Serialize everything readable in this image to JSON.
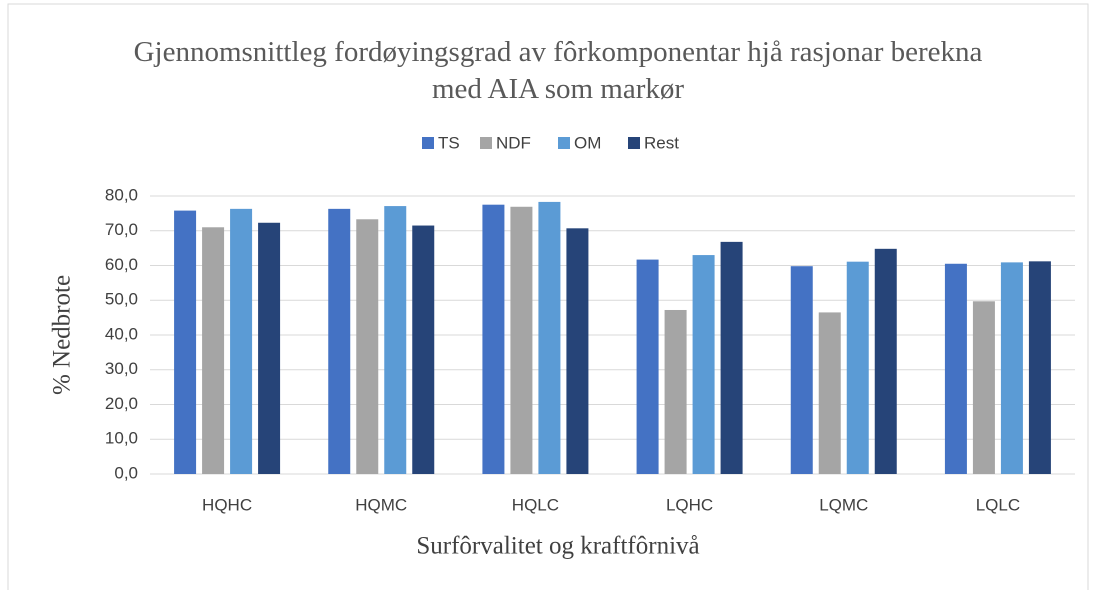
{
  "chart_data": {
    "type": "bar",
    "title": "Gjennomsnittleg fordøyingsgrad av fôrkomponentar hjå rasjonar berekna med AIA som markør",
    "xlabel": "Surfôrvalitet og kraftfôrnivå",
    "ylabel": "% Nedbrote",
    "categories": [
      "HQHC",
      "HQMC",
      "HQLC",
      "LQHC",
      "LQMC",
      "LQLC"
    ],
    "series": [
      {
        "name": "TS",
        "color": "#4472c4",
        "values": [
          75.8,
          76.3,
          77.5,
          61.7,
          59.8,
          60.5
        ]
      },
      {
        "name": "NDF",
        "color": "#a5a5a5",
        "values": [
          71.0,
          73.3,
          76.9,
          47.2,
          46.5,
          49.7
        ]
      },
      {
        "name": "OM",
        "color": "#5b9bd5",
        "values": [
          76.3,
          77.1,
          78.3,
          63.0,
          61.1,
          60.9
        ]
      },
      {
        "name": "Rest",
        "color": "#264478",
        "values": [
          72.3,
          71.5,
          70.7,
          66.8,
          64.8,
          61.2
        ]
      }
    ],
    "ylim": [
      0,
      80
    ],
    "yticks": [
      {
        "value": 0,
        "label": "0,0"
      },
      {
        "value": 10,
        "label": "10,0"
      },
      {
        "value": 20,
        "label": "20,0"
      },
      {
        "value": 30,
        "label": "30,0"
      },
      {
        "value": 40,
        "label": "40,0"
      },
      {
        "value": 50,
        "label": "50,0"
      },
      {
        "value": 60,
        "label": "60,0"
      },
      {
        "value": 70,
        "label": "70,0"
      },
      {
        "value": 80,
        "label": "80,0"
      }
    ],
    "grid": true,
    "legend": "top"
  }
}
